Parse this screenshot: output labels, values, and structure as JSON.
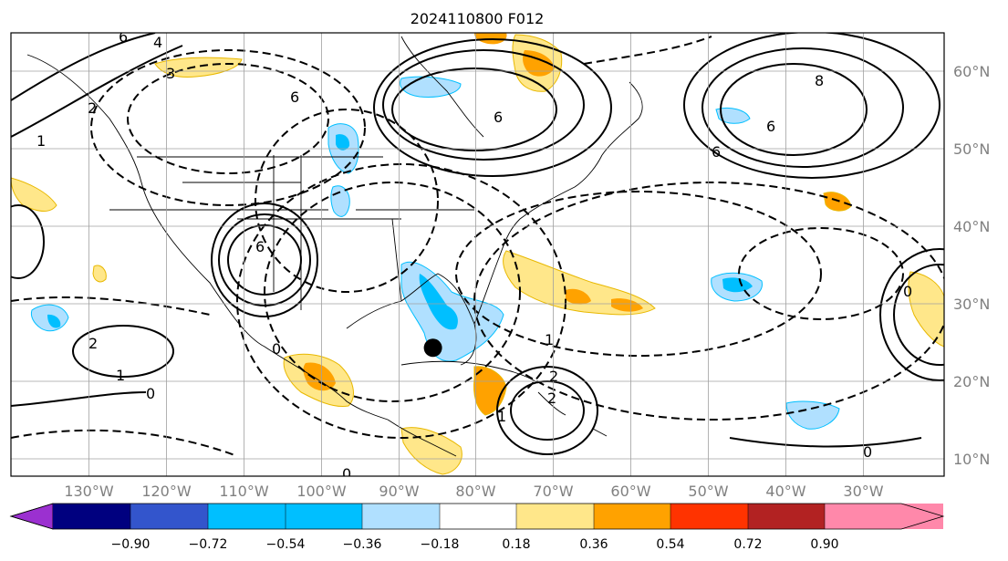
{
  "figure": {
    "title": "2024110800 F012"
  },
  "map": {
    "projection": "equirectangular",
    "lon_range": [
      -140,
      -25
    ],
    "lat_range": [
      8,
      65
    ],
    "lon_ticks": [
      "130°W",
      "120°W",
      "110°W",
      "100°W",
      "90°W",
      "80°W",
      "70°W",
      "60°W",
      "50°W",
      "40°W",
      "30°W"
    ],
    "lat_ticks": [
      "60°N",
      "50°N",
      "40°N",
      "30°N",
      "20°N",
      "10°N"
    ],
    "grid": true,
    "contour_labels": [
      "6",
      "4",
      "3",
      "1",
      "2",
      "6",
      "6",
      "6",
      "8",
      "6",
      "6",
      "1",
      "0",
      "2",
      "0",
      "0",
      "0",
      "1",
      "1",
      "2",
      "0",
      "2"
    ],
    "marker": {
      "name": "storm-center",
      "lon": -88,
      "lat": 24.5,
      "color": "#000000"
    }
  },
  "colorbar": {
    "labels": [
      "−0.90",
      "−0.72",
      "−0.54",
      "−0.36",
      "−0.18",
      "0.18",
      "0.36",
      "0.54",
      "0.72",
      "0.90"
    ],
    "colors": [
      "#9b30d0",
      "#00007f",
      "#3355cc",
      "#00bfff",
      "#b0e0ff",
      "#ffffff",
      "#ffe78a",
      "#ffa200",
      "#ff3300",
      "#b22222",
      "#ff88aa"
    ]
  }
}
